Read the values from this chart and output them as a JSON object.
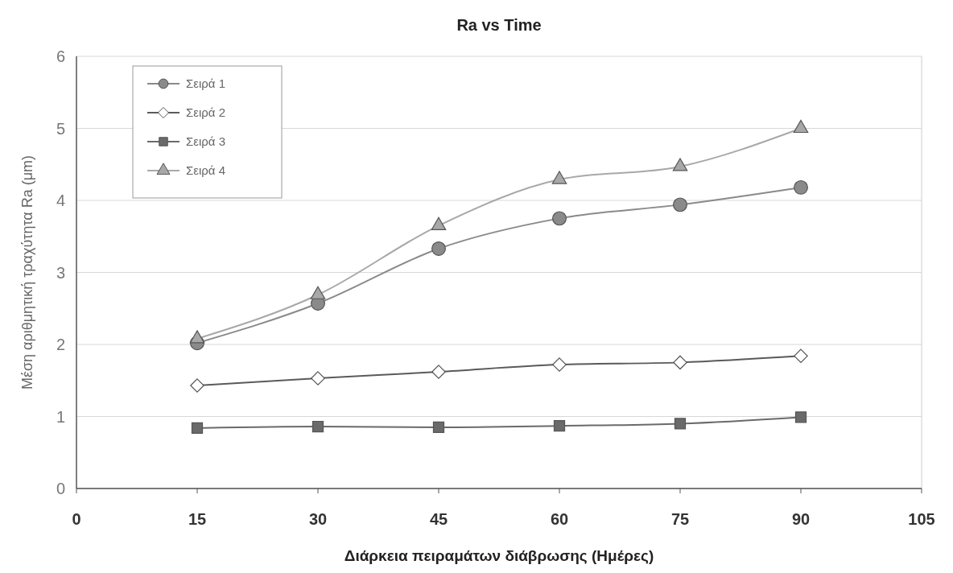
{
  "chart_data": {
    "type": "line",
    "title": "Ra vs Time",
    "xlabel": "Διάρκεια πειραμάτων διάβρωσης (Ημέρες)",
    "ylabel": "Μέση αριθμητική τραχύτητα Ra (μm)",
    "x": [
      15,
      30,
      45,
      60,
      75,
      90
    ],
    "xlim": [
      0,
      105
    ],
    "xticks": [
      0,
      15,
      30,
      45,
      60,
      75,
      90,
      105
    ],
    "ylim": [
      0,
      6
    ],
    "yticks": [
      0,
      1,
      2,
      3,
      4,
      5,
      6
    ],
    "grid": "y",
    "legend": "top left",
    "series": [
      {
        "name": "Σειρά 1",
        "color": "#8a8a8a",
        "marker": "circle",
        "values": [
          2.02,
          2.57,
          3.33,
          3.75,
          3.94,
          4.18
        ]
      },
      {
        "name": "Σειρά 2",
        "color": "#5a5a5a",
        "marker": "diamond",
        "values": [
          1.43,
          1.53,
          1.62,
          1.72,
          1.75,
          1.84
        ]
      },
      {
        "name": "Σειρά 3",
        "color": "#6a6a6a",
        "marker": "square",
        "values": [
          0.84,
          0.86,
          0.85,
          0.87,
          0.9,
          0.99
        ]
      },
      {
        "name": "Σειρά 4",
        "color": "#a8a8a8",
        "marker": "triangle",
        "values": [
          2.08,
          2.69,
          3.65,
          4.29,
          4.47,
          5.0
        ]
      }
    ]
  }
}
